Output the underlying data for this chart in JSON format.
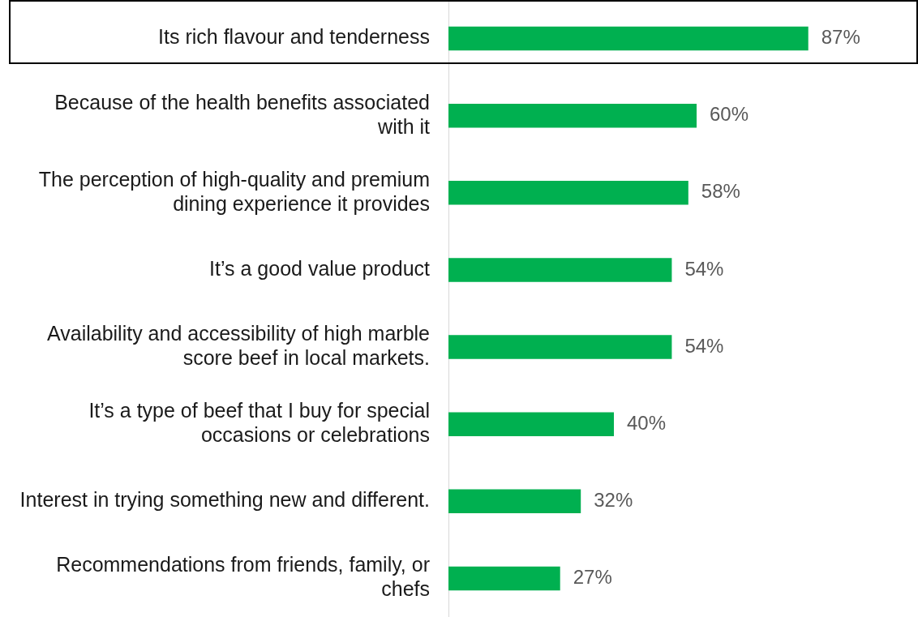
{
  "chart_data": {
    "type": "bar",
    "orientation": "horizontal",
    "categories": [
      "Its rich flavour and tenderness",
      "Because of the health benefits associated with it",
      "The perception of high-quality and premium dining experience it provides",
      "It’s a good value product",
      "Availability and accessibility of high marble score beef in local markets.",
      "It’s a type of beef that I buy for special occasions or celebrations",
      "Interest in trying something new and different.",
      "Recommendations from friends, family, or chefs"
    ],
    "values": [
      87,
      60,
      58,
      54,
      54,
      40,
      32,
      27
    ],
    "value_labels": [
      "87%",
      "60%",
      "58%",
      "54%",
      "54%",
      "40%",
      "32%",
      "27%"
    ],
    "color": "#00b050",
    "legend": false,
    "tick_labels": "y"
  }
}
